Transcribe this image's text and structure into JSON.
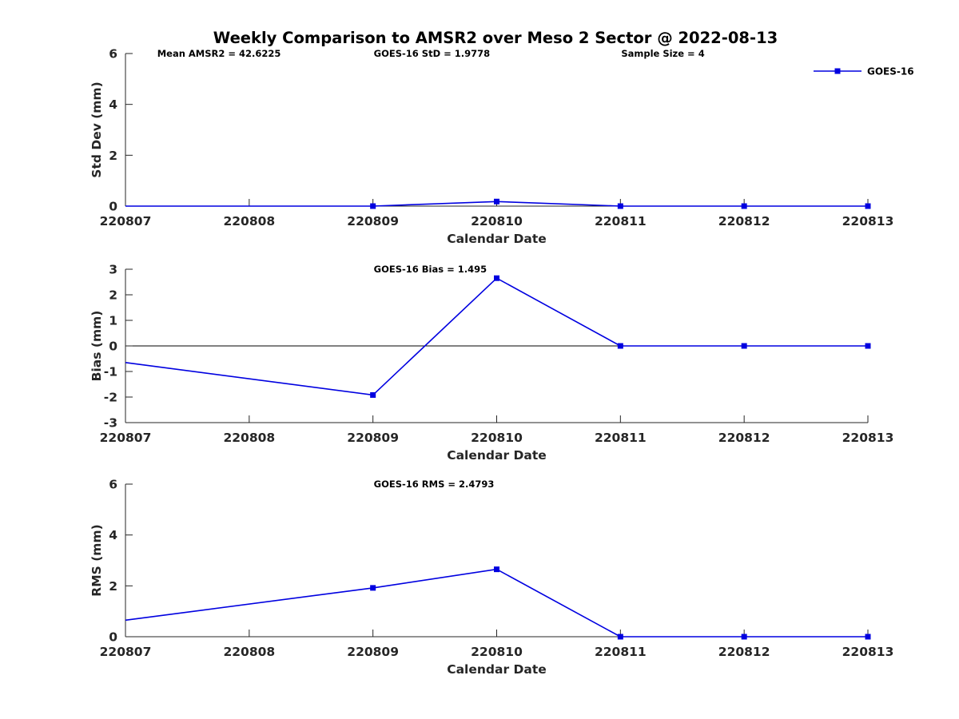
{
  "figure_title": "Weekly Comparison to AMSR2 over Meso 2 Sector @ 2022-08-13",
  "series_color": "#0000e0",
  "chart_data": [
    {
      "type": "line",
      "ylabel": "Std Dev (mm)",
      "xlabel": "Calendar Date",
      "categories": [
        "220807",
        "220808",
        "220809",
        "220810",
        "220811",
        "220812",
        "220813"
      ],
      "ylim": [
        0,
        6
      ],
      "yticks": [
        0,
        2,
        4,
        6
      ],
      "xlim": [
        0,
        6
      ],
      "series": [
        {
          "name": "GOES-16",
          "x": [
            0,
            2,
            3,
            4,
            5,
            6
          ],
          "y": [
            0,
            0,
            0.18,
            0,
            0,
            0
          ],
          "markers": [
            2,
            3,
            4,
            5,
            6
          ]
        }
      ],
      "annotations": [
        {
          "text": "Mean AMSR2 = 42.6225",
          "anchor": 0.25
        },
        {
          "text": "GOES-16 StD = 1.9778",
          "anchor": 2.0
        },
        {
          "text": "Sample Size = 4",
          "anchor": 4.0
        }
      ],
      "legend": {
        "placement": "top-right",
        "entries": [
          "GOES-16"
        ]
      },
      "zero_line": false
    },
    {
      "type": "line",
      "ylabel": "Bias (mm)",
      "xlabel": "Calendar Date",
      "categories": [
        "220807",
        "220808",
        "220809",
        "220810",
        "220811",
        "220812",
        "220813"
      ],
      "ylim": [
        -3,
        3
      ],
      "yticks": [
        -3,
        -2,
        -1,
        0,
        1,
        2,
        3
      ],
      "xlim": [
        0,
        6
      ],
      "series": [
        {
          "name": "GOES-16",
          "x": [
            0,
            2,
            3,
            4,
            5,
            6
          ],
          "y": [
            -0.65,
            -1.92,
            2.65,
            0,
            0,
            0
          ],
          "markers": [
            2,
            3,
            4,
            5,
            6
          ]
        }
      ],
      "annotations": [
        {
          "text": "GOES-16 Bias  = 1.495",
          "anchor": 2.0
        }
      ],
      "zero_line": true
    },
    {
      "type": "line",
      "ylabel": "RMS (mm)",
      "xlabel": "Calendar Date",
      "categories": [
        "220807",
        "220808",
        "220809",
        "220810",
        "220811",
        "220812",
        "220813"
      ],
      "ylim": [
        0,
        6
      ],
      "yticks": [
        0,
        2,
        4,
        6
      ],
      "xlim": [
        0,
        6
      ],
      "series": [
        {
          "name": "GOES-16",
          "x": [
            0,
            2,
            3,
            4,
            5,
            6
          ],
          "y": [
            0.65,
            1.92,
            2.65,
            0,
            0,
            0
          ],
          "markers": [
            2,
            3,
            4,
            5,
            6
          ]
        }
      ],
      "annotations": [
        {
          "text": "GOES-16 RMS = 2.4793",
          "anchor": 2.0
        }
      ],
      "zero_line": false
    }
  ]
}
